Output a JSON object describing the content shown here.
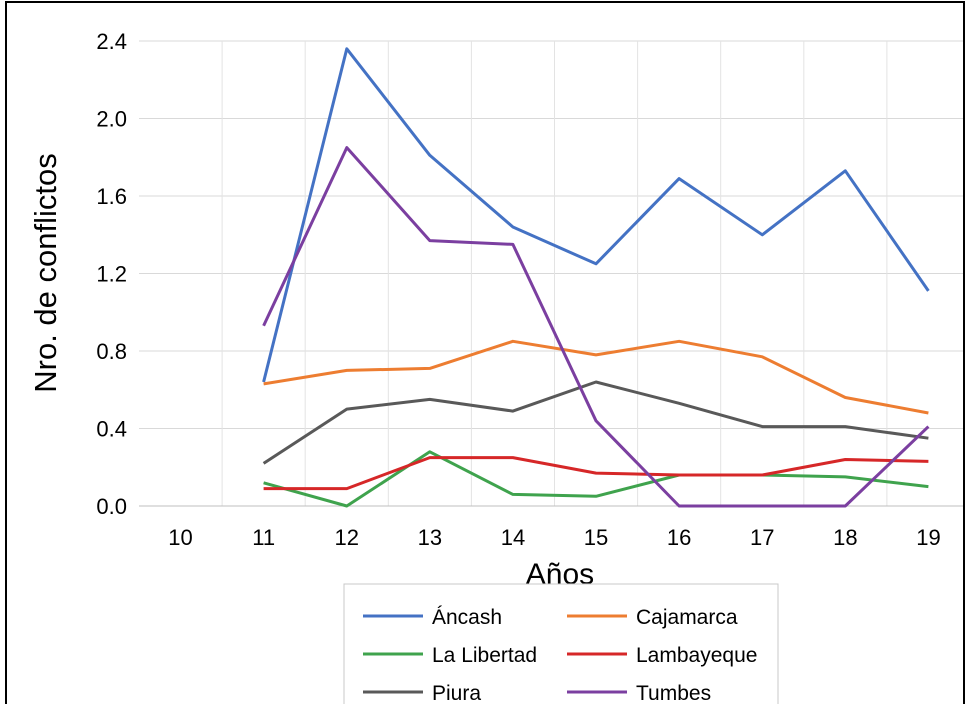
{
  "chart_data": {
    "type": "line",
    "title": "",
    "xlabel": "Años",
    "ylabel": "Nro. de conflictos",
    "x": [
      "10",
      "11",
      "12",
      "13",
      "14",
      "15",
      "16",
      "17",
      "18",
      "19"
    ],
    "ylim": [
      0,
      2.4
    ],
    "yticks": [
      "0.0",
      "0.4",
      "0.8",
      "1.2",
      "1.6",
      "2.0",
      "2.4"
    ],
    "grid": true,
    "legend_position": "bottom",
    "series": [
      {
        "name": "Áncash",
        "color": "#4472C4",
        "values": [
          null,
          0.64,
          2.36,
          1.81,
          1.44,
          1.25,
          1.69,
          1.4,
          1.73,
          1.11
        ]
      },
      {
        "name": "Cajamarca",
        "color": "#ED7D31",
        "values": [
          null,
          0.63,
          0.7,
          0.71,
          0.85,
          0.78,
          0.85,
          0.77,
          0.56,
          0.48
        ]
      },
      {
        "name": "La Libertad",
        "color": "#3FA34D",
        "values": [
          null,
          0.12,
          0.0,
          0.28,
          0.06,
          0.05,
          0.16,
          0.16,
          0.15,
          0.1
        ]
      },
      {
        "name": "Lambayeque",
        "color": "#D62728",
        "values": [
          null,
          0.09,
          0.09,
          0.25,
          0.25,
          0.17,
          0.16,
          0.16,
          0.24,
          0.23
        ]
      },
      {
        "name": "Piura",
        "color": "#595959",
        "values": [
          null,
          0.22,
          0.5,
          0.55,
          0.49,
          0.64,
          0.53,
          0.41,
          0.41,
          0.35
        ]
      },
      {
        "name": "Tumbes",
        "color": "#7B3FA0",
        "values": [
          null,
          0.93,
          1.85,
          1.37,
          1.35,
          0.44,
          0.0,
          0.0,
          0.0,
          0.41
        ]
      }
    ]
  }
}
